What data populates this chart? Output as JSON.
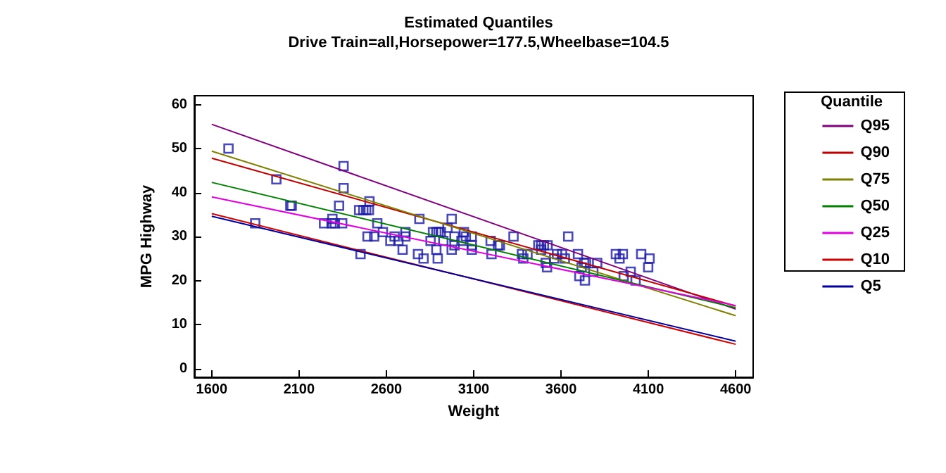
{
  "chart_data": {
    "type": "line",
    "title": "Estimated Quantiles",
    "subtitle": "Drive Train=all,Horsepower=177.5,Wheelbase=104.5",
    "xlabel": "Weight",
    "ylabel": "MPG Highway",
    "legend_title": "Quantile",
    "legend": "right",
    "grid": false,
    "marker": "none",
    "xlim": [
      1500,
      4700
    ],
    "xticks": [
      1600,
      2100,
      2600,
      3100,
      3600,
      4100,
      4600
    ],
    "ylim": [
      -2,
      62
    ],
    "yticks": [
      0,
      10,
      20,
      30,
      40,
      50,
      60
    ],
    "series": [
      {
        "type": "scatter",
        "marker": "square",
        "color": "#1c1ca8",
        "x": [
          1696,
          1849,
          1970,
          2050,
          2058,
          2243,
          2291,
          2286,
          2305,
          2329,
          2347,
          2355,
          2355,
          2444,
          2468,
          2484,
          2500,
          2503,
          2452,
          2492,
          2530,
          2548,
          2580,
          2623,
          2647,
          2669,
          2693,
          2709,
          2709,
          2781,
          2789,
          2813,
          2853,
          2867,
          2886,
          2899,
          2912,
          2886,
          2894,
          2926,
          2950,
          2974,
          2974,
          2990,
          2990,
          3030,
          3044,
          3055,
          3089,
          3089,
          3089,
          3197,
          3202,
          3239,
          3250,
          3328,
          3376,
          3384,
          3408,
          3470,
          3486,
          3502,
          3523,
          3486,
          3512,
          3520,
          3561,
          3577,
          3606,
          3622,
          3641,
          3697,
          3705,
          3718,
          3732,
          3743,
          3737,
          3785,
          3807,
          3914,
          3954,
          3935,
          3959,
          3999,
          4027,
          4059,
          4099,
          4107
        ],
        "values": [
          50,
          33,
          43,
          37,
          37,
          33,
          34,
          33,
          33,
          37,
          33,
          46,
          41,
          36,
          36,
          36,
          36,
          38,
          26,
          30,
          30,
          33,
          31,
          29,
          30,
          29,
          27,
          31,
          30,
          26,
          34,
          25,
          29,
          31,
          31,
          31,
          31,
          27,
          25,
          29,
          32,
          34,
          27,
          30,
          28,
          29,
          31,
          30,
          30,
          28,
          27,
          29,
          26,
          28,
          28,
          30,
          26,
          25,
          26,
          28,
          28,
          28,
          28,
          27,
          24,
          23,
          25,
          26,
          26,
          25,
          30,
          26,
          21,
          23,
          24,
          24,
          20,
          22,
          24,
          26,
          26,
          25,
          21,
          22,
          20,
          26,
          23,
          25
        ]
      },
      {
        "name": "Q95",
        "color": "#800080",
        "x": [
          1600,
          4600
        ],
        "values": [
          55.5,
          13.5
        ]
      },
      {
        "name": "Q90",
        "color": "#c00000",
        "x": [
          1600,
          4600
        ],
        "values": [
          47.8,
          14.2
        ]
      },
      {
        "name": "Q75",
        "color": "#808000",
        "x": [
          1600,
          4600
        ],
        "values": [
          49.4,
          12
        ]
      },
      {
        "name": "Q50",
        "color": "#008000",
        "x": [
          1600,
          4600
        ],
        "values": [
          42.3,
          13.8
        ]
      },
      {
        "name": "Q25",
        "color": "#e000e0",
        "x": [
          1600,
          4600
        ],
        "values": [
          39,
          14.3
        ]
      },
      {
        "name": "Q10",
        "color": "#d00000",
        "x": [
          1600,
          4600
        ],
        "values": [
          35.2,
          5.5
        ]
      },
      {
        "name": "Q5",
        "color": "#0000a0",
        "x": [
          1600,
          4600
        ],
        "values": [
          34.6,
          6.2
        ]
      }
    ]
  }
}
